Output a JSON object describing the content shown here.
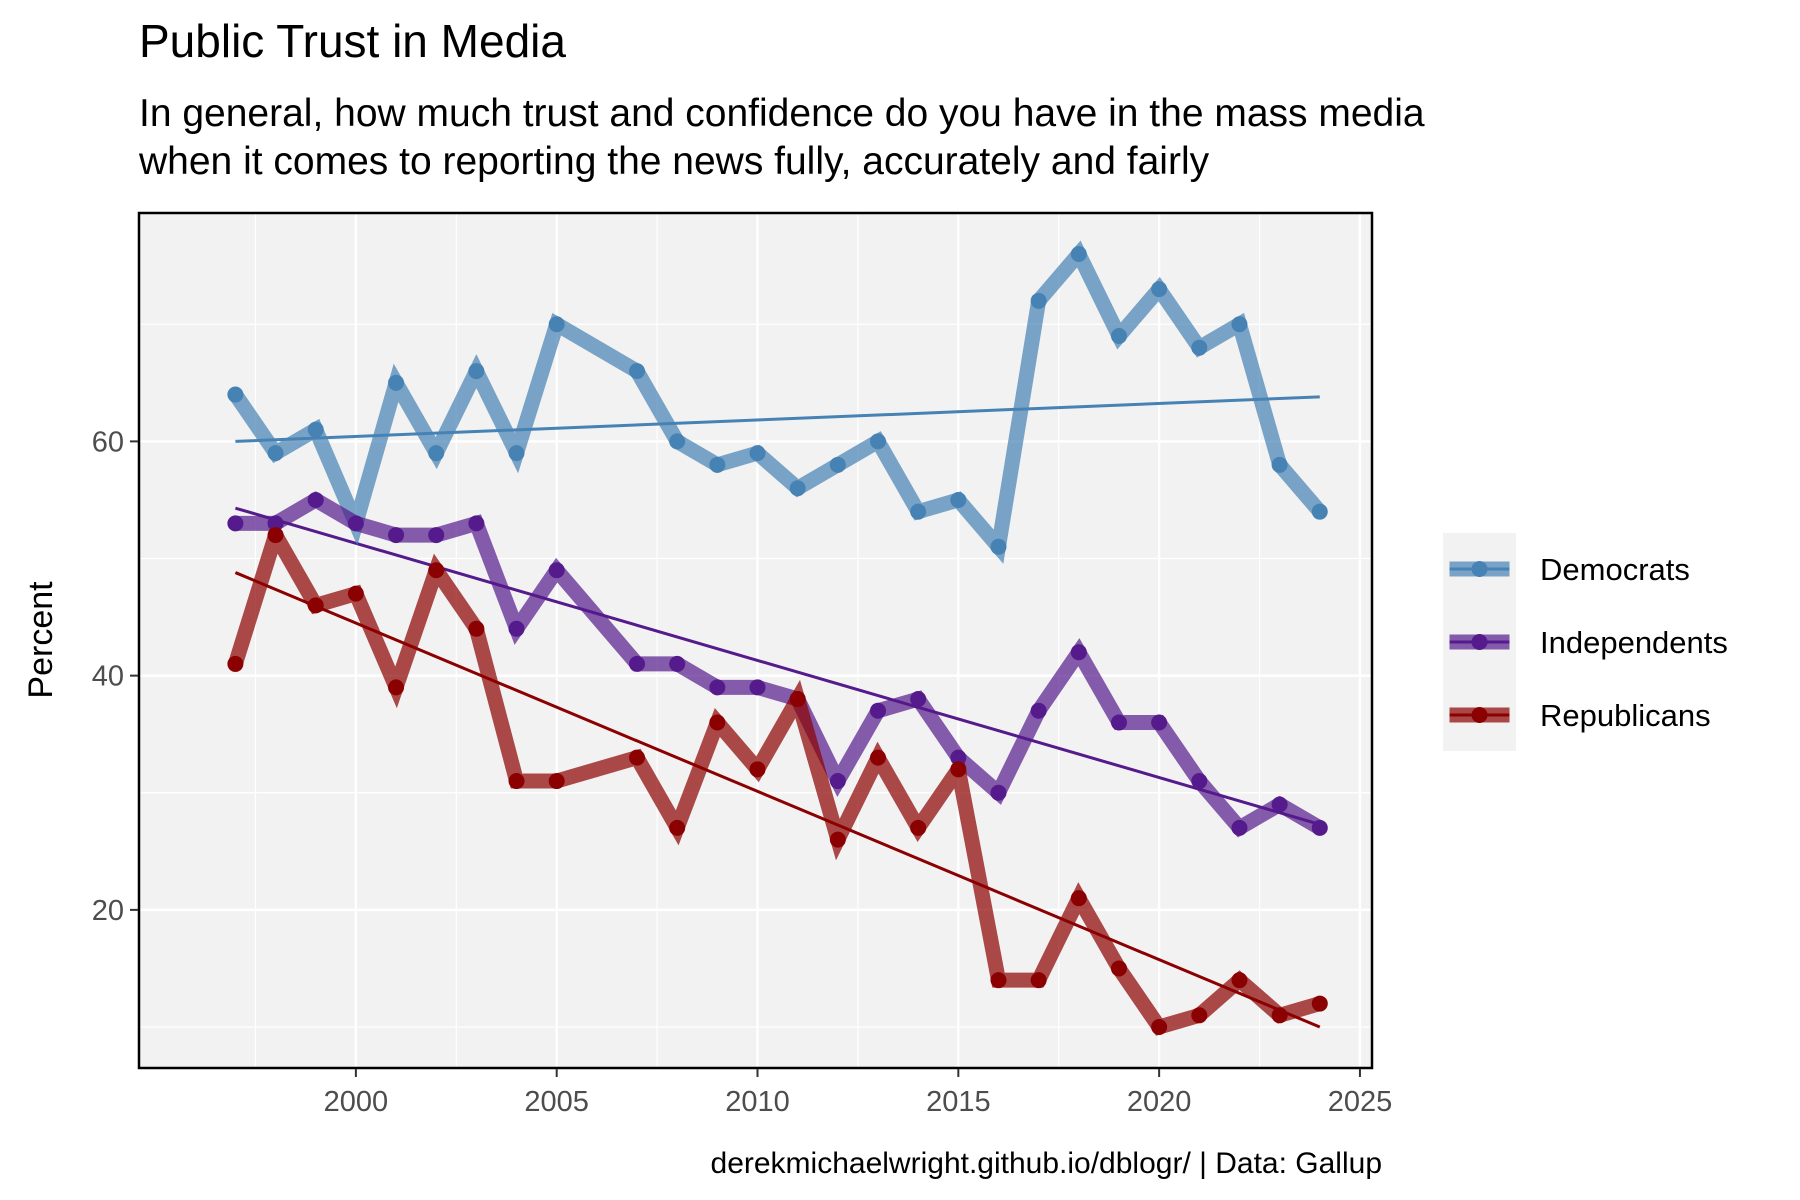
{
  "chart_data": {
    "type": "line",
    "title": "Public Trust in Media",
    "subtitle_lines": [
      "In general, how much trust and confidence do you have in the mass media",
      "when it comes to reporting the news fully, accurately and fairly"
    ],
    "ylabel": "Percent",
    "xlabel": "",
    "caption": "derekmichaelwright.github.io/dblogr/ | Data: Gallup",
    "xlim": [
      1994.6,
      2025.3
    ],
    "ylim": [
      6.5,
      79.5
    ],
    "x_ticks": [
      2000,
      2005,
      2010,
      2015,
      2020,
      2025
    ],
    "y_ticks": [
      20,
      40,
      60
    ],
    "grid": true,
    "legend_position": "right",
    "x": [
      1997,
      1998,
      1999,
      2000,
      2001,
      2002,
      2003,
      2004,
      2005,
      2007,
      2008,
      2009,
      2010,
      2011,
      2012,
      2013,
      2014,
      2015,
      2016,
      2017,
      2018,
      2019,
      2020,
      2021,
      2022,
      2023,
      2024
    ],
    "series": [
      {
        "name": "Democrats",
        "color": "#4682b4",
        "values": [
          64,
          59,
          61,
          53,
          65,
          59,
          66,
          59,
          70,
          66,
          60,
          58,
          59,
          56,
          58,
          60,
          54,
          55,
          51,
          72,
          76,
          69,
          73,
          68,
          70,
          58,
          54
        ],
        "trend": [
          60.0,
          63.8
        ]
      },
      {
        "name": "Independents",
        "color": "#551a8b",
        "values": [
          53,
          53,
          55,
          53,
          52,
          52,
          53,
          44,
          49,
          41,
          41,
          39,
          39,
          38,
          31,
          37,
          38,
          33,
          30,
          37,
          42,
          36,
          36,
          31,
          27,
          29,
          27
        ],
        "trend": [
          54.3,
          27.3
        ]
      },
      {
        "name": "Republicans",
        "color": "#8b0000",
        "values": [
          41,
          52,
          46,
          47,
          39,
          49,
          44,
          31,
          31,
          33,
          27,
          36,
          32,
          38,
          26,
          33,
          27,
          32,
          14,
          14,
          21,
          15,
          10,
          11,
          14,
          11,
          12
        ],
        "trend": [
          48.8,
          10.0
        ]
      }
    ]
  }
}
